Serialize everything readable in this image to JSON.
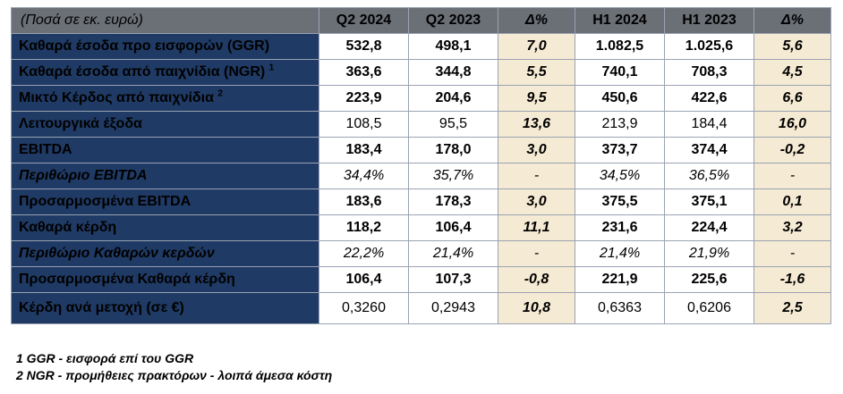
{
  "header": [
    "(Ποσά σε εκ. ευρώ)",
    "Q2 2024",
    "Q2 2023",
    "Δ%",
    "H1 2024",
    "H1 2023",
    "Δ%"
  ],
  "rows": [
    {
      "label": "Καθαρά έσοδα προ εισφορών (GGR)",
      "sup": "",
      "values": [
        "532,8",
        "498,1",
        "7,0",
        "1.082,5",
        "1.025,6",
        "5,6"
      ]
    },
    {
      "label": "Καθαρά έσοδα από παιχνίδια (NGR)",
      "sup": "1",
      "values": [
        "363,6",
        "344,8",
        "5,5",
        "740,1",
        "708,3",
        "4,5"
      ]
    },
    {
      "label": "Μικτό Κέρδος από παιχνίδια",
      "sup": "2",
      "values": [
        "223,9",
        "204,6",
        "9,5",
        "450,6",
        "422,6",
        "6,6"
      ]
    },
    {
      "label": "Λειτουργικά έξοδα",
      "sup": "",
      "values": [
        "108,5",
        "95,5",
        "13,6",
        "213,9",
        "184,4",
        "16,0"
      ]
    },
    {
      "label": "EBITDA",
      "sup": "",
      "values": [
        "183,4",
        "178,0",
        "3,0",
        "373,7",
        "374,4",
        "-0,2"
      ]
    },
    {
      "label": "Περιθώριο EBITDA",
      "sup": "",
      "values": [
        "34,4%",
        "35,7%",
        "-",
        "34,5%",
        "36,5%",
        "-"
      ]
    },
    {
      "label": "Προσαρμοσμένα EBITDA",
      "sup": "",
      "values": [
        "183,6",
        "178,3",
        "3,0",
        "375,5",
        "375,1",
        "0,1"
      ]
    },
    {
      "label": "Καθαρά κέρδη",
      "sup": "",
      "values": [
        "118,2",
        "106,4",
        "11,1",
        "231,6",
        "224,4",
        "3,2"
      ]
    },
    {
      "label": "Περιθώριο Καθαρών κερδών",
      "sup": "",
      "values": [
        "22,2%",
        "21,4%",
        "-",
        "21,4%",
        "21,9%",
        "-"
      ]
    },
    {
      "label": "Προσαρμοσμένα Καθαρά κέρδη",
      "sup": "",
      "values": [
        "106,4",
        "107,3",
        "-0,8",
        "221,9",
        "225,6",
        "-1,6"
      ]
    },
    {
      "label": "Κέρδη ανά μετοχή (σε €)",
      "sup": "",
      "values": [
        "0,3260",
        "0,2943",
        "10,8",
        "0,6363",
        "0,6206",
        "2,5"
      ]
    }
  ],
  "notes": [
    "1 GGR - εισφορά επί του GGR",
    "2 NGR - προμήθειες πρακτόρων - λοιπά άμεσα κόστη"
  ]
}
